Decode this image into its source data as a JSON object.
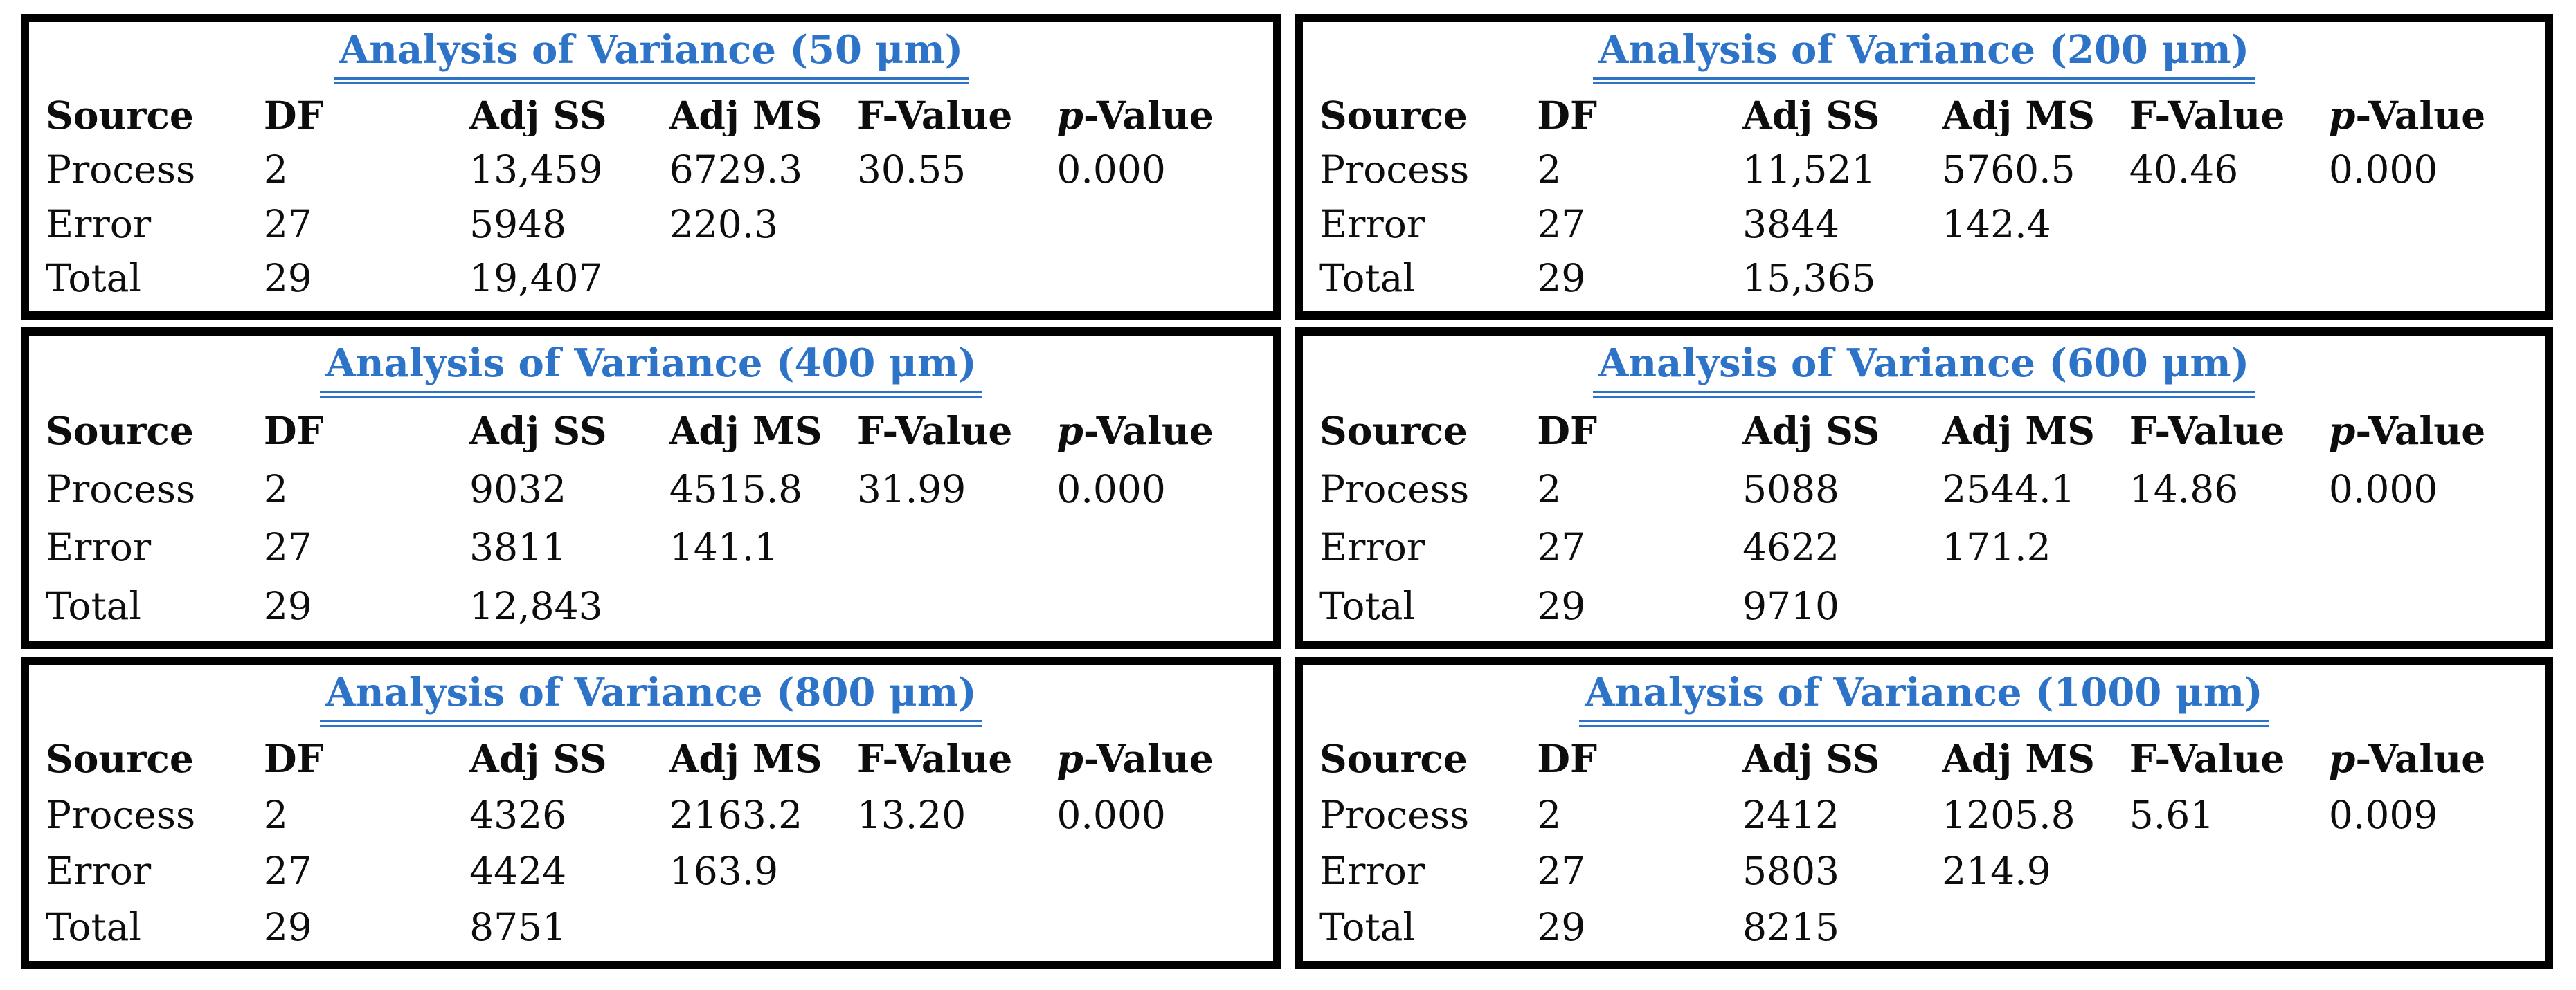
{
  "styles": {
    "title_color": "#2d73c8",
    "border_color": "#000000",
    "text_color": "#0d0d0d",
    "background_color": "#ffffff"
  },
  "columns": [
    "Source",
    "DF",
    "Adj SS",
    "Adj MS",
    "F-Value",
    "p-Value"
  ],
  "tables": [
    {
      "title": "Analysis of Variance (50 μm)",
      "rows": [
        {
          "source": "Process",
          "df": "2",
          "adj_ss": "13,459",
          "adj_ms": "6729.3",
          "f_value": "30.55",
          "p_value": "0.000"
        },
        {
          "source": "Error",
          "df": "27",
          "adj_ss": "5948",
          "adj_ms": "220.3",
          "f_value": "",
          "p_value": ""
        },
        {
          "source": "Total",
          "df": "29",
          "adj_ss": "19,407",
          "adj_ms": "",
          "f_value": "",
          "p_value": ""
        }
      ]
    },
    {
      "title": "Analysis of Variance (200 μm)",
      "rows": [
        {
          "source": "Process",
          "df": "2",
          "adj_ss": "11,521",
          "adj_ms": "5760.5",
          "f_value": "40.46",
          "p_value": "0.000"
        },
        {
          "source": "Error",
          "df": "27",
          "adj_ss": "3844",
          "adj_ms": "142.4",
          "f_value": "",
          "p_value": ""
        },
        {
          "source": "Total",
          "df": "29",
          "adj_ss": "15,365",
          "adj_ms": "",
          "f_value": "",
          "p_value": ""
        }
      ]
    },
    {
      "title": "Analysis of Variance (400 μm)",
      "rows": [
        {
          "source": "Process",
          "df": "2",
          "adj_ss": "9032",
          "adj_ms": "4515.8",
          "f_value": "31.99",
          "p_value": "0.000"
        },
        {
          "source": "Error",
          "df": "27",
          "adj_ss": "3811",
          "adj_ms": "141.1",
          "f_value": "",
          "p_value": ""
        },
        {
          "source": "Total",
          "df": "29",
          "adj_ss": "12,843",
          "adj_ms": "",
          "f_value": "",
          "p_value": ""
        }
      ]
    },
    {
      "title": "Analysis of Variance (600 μm)",
      "rows": [
        {
          "source": "Process",
          "df": "2",
          "adj_ss": "5088",
          "adj_ms": "2544.1",
          "f_value": "14.86",
          "p_value": "0.000"
        },
        {
          "source": "Error",
          "df": "27",
          "adj_ss": "4622",
          "adj_ms": "171.2",
          "f_value": "",
          "p_value": ""
        },
        {
          "source": "Total",
          "df": "29",
          "adj_ss": "9710",
          "adj_ms": "",
          "f_value": "",
          "p_value": ""
        }
      ]
    },
    {
      "title": "Analysis of Variance (800 μm)",
      "rows": [
        {
          "source": "Process",
          "df": "2",
          "adj_ss": "4326",
          "adj_ms": "2163.2",
          "f_value": "13.20",
          "p_value": "0.000"
        },
        {
          "source": "Error",
          "df": "27",
          "adj_ss": "4424",
          "adj_ms": "163.9",
          "f_value": "",
          "p_value": ""
        },
        {
          "source": "Total",
          "df": "29",
          "adj_ss": "8751",
          "adj_ms": "",
          "f_value": "",
          "p_value": ""
        }
      ]
    },
    {
      "title": "Analysis of Variance (1000 μm)",
      "rows": [
        {
          "source": "Process",
          "df": "2",
          "adj_ss": "2412",
          "adj_ms": "1205.8",
          "f_value": "5.61",
          "p_value": "0.009"
        },
        {
          "source": "Error",
          "df": "27",
          "adj_ss": "5803",
          "adj_ms": "214.9",
          "f_value": "",
          "p_value": ""
        },
        {
          "source": "Total",
          "df": "29",
          "adj_ss": "8215",
          "adj_ms": "",
          "f_value": "",
          "p_value": ""
        }
      ]
    }
  ]
}
